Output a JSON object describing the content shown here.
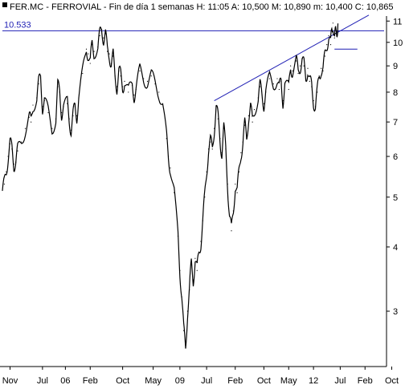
{
  "header": {
    "title": "FER.MC - FERROVIAL - Fin de día 1 semanas H: 11:05 A: 10,500 M: 10,890 m: 10,400 C: 10,865"
  },
  "chart_data": {
    "type": "line",
    "title": "FER.MC - FERROVIAL - Fin de día 1 semanas",
    "scale": "log",
    "ylim": [
      2.35,
      11.25
    ],
    "xlim": [
      0,
      100
    ],
    "grid": false,
    "xlabel": "",
    "ylabel": "",
    "y_ticks": [
      3,
      4,
      5,
      6,
      7,
      8,
      9,
      10,
      11
    ],
    "x_ticks": [
      {
        "label": "Nov",
        "x": 2
      },
      {
        "label": "Jul",
        "x": 10.5
      },
      {
        "label": "06",
        "x": 16.5
      },
      {
        "label": "Feb",
        "x": 23
      },
      {
        "label": "Oct",
        "x": 31.5
      },
      {
        "label": "May",
        "x": 39.5
      },
      {
        "label": "09",
        "x": 46.5
      },
      {
        "label": "Jul",
        "x": 53.5
      },
      {
        "label": "Feb",
        "x": 61
      },
      {
        "label": "Oct",
        "x": 68.5
      },
      {
        "label": "May",
        "x": 75
      },
      {
        "label": "12",
        "x": 81.5
      },
      {
        "label": "Jul",
        "x": 88.5
      },
      {
        "label": "Feb",
        "x": 95
      },
      {
        "label": "Oct",
        "x": 102
      }
    ],
    "series": [
      {
        "points": [
          [
            0,
            5.15
          ],
          [
            0.5,
            5.3
          ],
          [
            1,
            5.6
          ],
          [
            1.5,
            6.0
          ],
          [
            2,
            6.35
          ],
          [
            2.5,
            6.2
          ],
          [
            3,
            5.8
          ],
          [
            3.5,
            5.85
          ],
          [
            4,
            6.15
          ],
          [
            5,
            6.4
          ],
          [
            6,
            6.8
          ],
          [
            7,
            7.15
          ],
          [
            7.5,
            7.0
          ],
          [
            8,
            7.55
          ],
          [
            9,
            7.8
          ],
          [
            9.5,
            8.3
          ],
          [
            10,
            8.6
          ],
          [
            10.5,
            7.5
          ],
          [
            11,
            7.7
          ],
          [
            12,
            7.3
          ],
          [
            13,
            6.8
          ],
          [
            14,
            7.1
          ],
          [
            14.5,
            8.2
          ],
          [
            15,
            8.0
          ],
          [
            15.5,
            7.3
          ],
          [
            16,
            7.5
          ],
          [
            17,
            7.6
          ],
          [
            17.5,
            7.1
          ],
          [
            18,
            6.75
          ],
          [
            18.5,
            7.2
          ],
          [
            19,
            7.5
          ],
          [
            19.5,
            7.2
          ],
          [
            20,
            7.8
          ],
          [
            21,
            8.7
          ],
          [
            22,
            9.7
          ],
          [
            22.5,
            9.5
          ],
          [
            23,
            9.1
          ],
          [
            23.5,
            9.9
          ],
          [
            24,
            9.6
          ],
          [
            25,
            9.8
          ],
          [
            25.5,
            10.3
          ],
          [
            26,
            10.6
          ],
          [
            26.5,
            10.2
          ],
          [
            27,
            10.4
          ],
          [
            27.5,
            9.6
          ],
          [
            28,
            9.5
          ],
          [
            28.5,
            9.1
          ],
          [
            29,
            9.4
          ],
          [
            29.5,
            8.6
          ],
          [
            30,
            8.2
          ],
          [
            30.5,
            8.8
          ],
          [
            31,
            8.6
          ],
          [
            31.5,
            8.2
          ],
          [
            32,
            8.4
          ],
          [
            33,
            8.0
          ],
          [
            34,
            8.25
          ],
          [
            34.5,
            7.9
          ],
          [
            35,
            8.1
          ],
          [
            36,
            8.8
          ],
          [
            37,
            8.5
          ],
          [
            38,
            8.4
          ],
          [
            39,
            8.6
          ],
          [
            40,
            8.3
          ],
          [
            41,
            8.0
          ],
          [
            42,
            7.6
          ],
          [
            43,
            6.5
          ],
          [
            43.5,
            6.0
          ],
          [
            44,
            5.7
          ],
          [
            45,
            5.1
          ],
          [
            46,
            4.2
          ],
          [
            46.5,
            3.6
          ],
          [
            47,
            3.2
          ],
          [
            47.5,
            2.75
          ],
          [
            48,
            2.55
          ],
          [
            48.5,
            3.0
          ],
          [
            49,
            3.3
          ],
          [
            49.5,
            3.7
          ],
          [
            50,
            3.45
          ],
          [
            50.5,
            3.8
          ],
          [
            51,
            3.6
          ],
          [
            51.5,
            3.9
          ],
          [
            52,
            4.1
          ],
          [
            52.5,
            4.5
          ],
          [
            53,
            5.0
          ],
          [
            53.5,
            5.6
          ],
          [
            54,
            6.2
          ],
          [
            54.5,
            6.4
          ],
          [
            55,
            6.2
          ],
          [
            55.5,
            6.8
          ],
          [
            56,
            7.5
          ],
          [
            56.5,
            7.1
          ],
          [
            57,
            6.5
          ],
          [
            57.5,
            6.1
          ],
          [
            58,
            6.8
          ],
          [
            58.5,
            6.2
          ],
          [
            59,
            5.3
          ],
          [
            59.5,
            4.6
          ],
          [
            60,
            4.3
          ],
          [
            60.5,
            4.7
          ],
          [
            61,
            5.3
          ],
          [
            61.5,
            5.1
          ],
          [
            62,
            5.6
          ],
          [
            62.5,
            6.1
          ],
          [
            63,
            6.4
          ],
          [
            63.5,
            6.9
          ],
          [
            64,
            6.5
          ],
          [
            64.5,
            7.2
          ],
          [
            65,
            7.5
          ],
          [
            65.5,
            7.0
          ],
          [
            66,
            7.4
          ],
          [
            67,
            7.8
          ],
          [
            67.5,
            8.2
          ],
          [
            68,
            7.9
          ],
          [
            68.5,
            7.6
          ],
          [
            69,
            8.0
          ],
          [
            70,
            8.5
          ],
          [
            71,
            8.3
          ],
          [
            72,
            8.5
          ],
          [
            72.5,
            8.1
          ],
          [
            73,
            8.4
          ],
          [
            73.5,
            7.7
          ],
          [
            74,
            8.3
          ],
          [
            75,
            8.1
          ],
          [
            75.5,
            9.0
          ],
          [
            76,
            8.8
          ],
          [
            77,
            9.2
          ],
          [
            77.5,
            8.7
          ],
          [
            78,
            9.0
          ],
          [
            78.5,
            9.3
          ],
          [
            79,
            9.0
          ],
          [
            79.5,
            8.5
          ],
          [
            80,
            8.9
          ],
          [
            80.5,
            8.4
          ],
          [
            81,
            8.2
          ],
          [
            81.5,
            7.7
          ],
          [
            82,
            7.5
          ],
          [
            82.5,
            8.0
          ],
          [
            83,
            8.6
          ],
          [
            83.5,
            8.9
          ],
          [
            84,
            8.8
          ],
          [
            84.5,
            9.4
          ],
          [
            85,
            9.9
          ],
          [
            85.5,
            10.3
          ],
          [
            86,
            9.9
          ],
          [
            86.3,
            10.6
          ],
          [
            86.6,
            10.9
          ],
          [
            87,
            10.2
          ],
          [
            87.3,
            10.4
          ],
          [
            87.6,
            10.5
          ],
          [
            87.9,
            10.865
          ]
        ]
      }
    ],
    "annotations": {
      "horizontal_level": {
        "label": "10.533",
        "value": 10.533,
        "x_start": 0,
        "x_end": 100
      },
      "trendline": {
        "x1": 55.5,
        "y1": 7.7,
        "x2": 96,
        "y2": 11.3
      },
      "short_level": {
        "value": 9.7,
        "x_start": 87,
        "x_end": 93
      }
    },
    "colors": {
      "series": "#000000",
      "annotation": "#1f1fb4",
      "axis": "#000000",
      "background": "#ffffff"
    }
  }
}
